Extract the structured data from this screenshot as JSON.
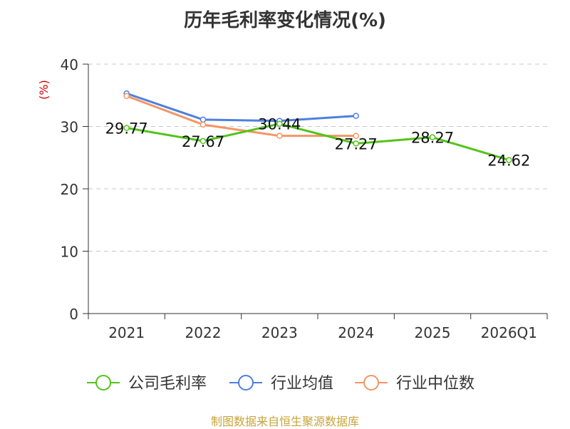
{
  "chart_data": {
    "type": "line",
    "title": "历年毛利率变化情况(%)",
    "ylabel": "(%)",
    "categories": [
      "2021",
      "2022",
      "2023",
      "2024",
      "2025",
      "2026Q1"
    ],
    "ylim": [
      0,
      40
    ],
    "yticks": [
      0,
      10,
      20,
      30,
      40
    ],
    "grid": true,
    "legend_position": "bottom",
    "series": [
      {
        "name": "公司毛利率",
        "color": "#52c41a",
        "values": [
          29.77,
          27.67,
          30.44,
          27.27,
          28.27,
          24.62
        ],
        "show_labels": true
      },
      {
        "name": "行业均值",
        "color": "#4e7fe0",
        "values": [
          35.3,
          31.1,
          30.9,
          31.7,
          null,
          null
        ],
        "show_labels": false
      },
      {
        "name": "行业中位数",
        "color": "#f59564",
        "values": [
          34.9,
          30.3,
          28.5,
          28.5,
          null,
          null
        ],
        "show_labels": false
      }
    ]
  },
  "source_text": "制图数据来自恒生聚源数据库"
}
